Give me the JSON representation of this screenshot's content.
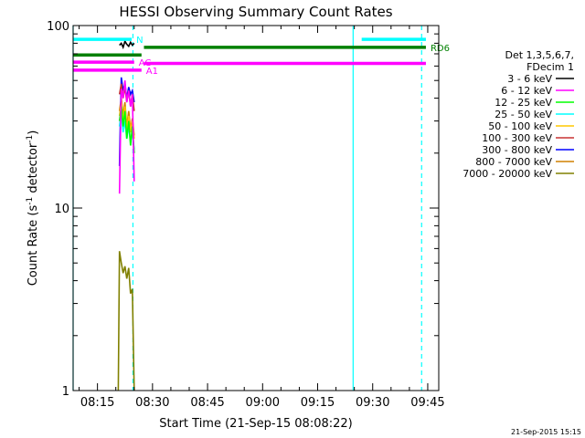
{
  "chart_data": {
    "type": "line",
    "title": "HESSI Observing Summary Count Rates",
    "xlabel": "Start Time (21-Sep-15 08:08:22)",
    "ylabel": "Count Rate (s",
    "ylabel_sup1": "-1",
    "ylabel_mid": " detector",
    "ylabel_sup2": "-1",
    "ylabel_end": ")",
    "y_scale": "log",
    "ylim": [
      1,
      100
    ],
    "xlim": [
      "08:08:22",
      "09:48:00"
    ],
    "x_ticks": [
      "08:15",
      "08:30",
      "08:45",
      "09:00",
      "09:15",
      "09:30",
      "09:45"
    ],
    "y_ticks": [
      "1",
      "10",
      "100"
    ],
    "legend": {
      "placement": "right",
      "header": [
        "Det 1,3,5,6,7,",
        "FDecim 1"
      ],
      "entries": [
        {
          "label": "3 - 6 keV",
          "color": "#000000"
        },
        {
          "label": "6 - 12 keV",
          "color": "#ff00ff"
        },
        {
          "label": "12 - 25 keV",
          "color": "#00ff00"
        },
        {
          "label": "25 - 50 keV",
          "color": "#00ffff"
        },
        {
          "label": "50 - 100 keV",
          "color": "#ffc800"
        },
        {
          "label": "100 - 300 keV",
          "color": "#c83232"
        },
        {
          "label": "300 - 800 keV",
          "color": "#0000ff"
        },
        {
          "label": "800 - 7000 keV",
          "color": "#d08000"
        },
        {
          "label": "7000 - 20000 keV",
          "color": "#808000"
        }
      ]
    },
    "flags": [
      {
        "label": "N",
        "color": "#00ffff",
        "y": 84,
        "segments": [
          [
            "08:08:22",
            "08:24:20"
          ],
          [
            "09:27:00",
            "09:44:30"
          ]
        ]
      },
      {
        "label": "RD6",
        "color": "#008000",
        "y": 76,
        "segments": [
          [
            "08:27:40",
            "09:44:30"
          ]
        ]
      },
      {
        "label": "",
        "color": "#008000",
        "y": 69,
        "segments": [
          [
            "08:08:22",
            "08:27:00"
          ]
        ]
      },
      {
        "label": "AC",
        "color": "#ff00ff",
        "y": 63,
        "segments": [
          [
            "08:08:22",
            "08:25:00"
          ]
        ]
      },
      {
        "label": "A1",
        "color": "#ff00ff",
        "y": 57,
        "segments": [
          [
            "08:08:22",
            "08:27:00"
          ]
        ]
      },
      {
        "label": "",
        "color": "#ff00ff",
        "y": 62,
        "segments": [
          [
            "08:27:40",
            "09:44:30"
          ]
        ]
      }
    ],
    "vlines": [
      {
        "time": "08:08:22",
        "style": "solid",
        "color": "#00ffff"
      },
      {
        "time": "08:24:40",
        "style": "dashed",
        "color": "#00ffff"
      },
      {
        "time": "09:24:40",
        "style": "solid",
        "color": "#00ffff"
      },
      {
        "time": "09:43:20",
        "style": "dashed",
        "color": "#00ffff"
      }
    ],
    "series": [
      {
        "name": "3 - 6 keV",
        "color": "#000000",
        "x": [
          "08:21:00",
          "08:21:30",
          "08:22:00",
          "08:22:30",
          "08:23:00",
          "08:23:30",
          "08:24:00",
          "08:24:30",
          "08:25:00"
        ],
        "y": [
          78,
          80,
          76,
          82,
          79,
          77,
          81,
          78,
          80
        ]
      },
      {
        "name": "6 - 12 keV",
        "color": "#ff00ff",
        "x": [
          "08:21:00",
          "08:21:30",
          "08:22:00",
          "08:22:30",
          "08:23:00",
          "08:23:30",
          "08:24:00",
          "08:24:30",
          "08:25:00"
        ],
        "y": [
          12,
          45,
          40,
          50,
          38,
          44,
          36,
          42,
          14
        ]
      },
      {
        "name": "12 - 25 keV",
        "color": "#00ff00",
        "x": [
          "08:21:00",
          "08:21:30",
          "08:22:00",
          "08:22:30",
          "08:23:00",
          "08:23:30",
          "08:24:00",
          "08:24:30",
          "08:25:00"
        ],
        "y": [
          30,
          36,
          28,
          34,
          24,
          30,
          22,
          28,
          20
        ]
      },
      {
        "name": "25 - 50 keV",
        "color": "#00ffff",
        "x": [
          "08:21:00",
          "08:21:30",
          "08:22:00",
          "08:22:30",
          "08:23:00",
          "08:23:30",
          "08:24:00",
          "08:24:30",
          "08:25:00"
        ],
        "y": [
          28,
          34,
          26,
          30,
          24,
          28,
          23,
          26,
          21
        ]
      },
      {
        "name": "50 - 100 keV",
        "color": "#ffc800",
        "x": [
          "08:21:00",
          "08:21:30",
          "08:22:00",
          "08:22:30",
          "08:23:00",
          "08:23:30",
          "08:24:00",
          "08:24:30",
          "08:25:00"
        ],
        "y": [
          32,
          38,
          30,
          36,
          27,
          32,
          26,
          30,
          24
        ]
      },
      {
        "name": "100 - 300 keV",
        "color": "#c83232",
        "x": [
          "08:21:00",
          "08:21:30",
          "08:22:00",
          "08:22:30",
          "08:23:00",
          "08:23:30",
          "08:24:00",
          "08:24:30",
          "08:25:00"
        ],
        "y": [
          42,
          48,
          40,
          46,
          38,
          44,
          36,
          42,
          34
        ]
      },
      {
        "name": "300 - 800 keV",
        "color": "#0000ff",
        "x": [
          "08:21:00",
          "08:21:30",
          "08:22:00",
          "08:22:30",
          "08:23:00",
          "08:23:30",
          "08:24:00",
          "08:24:30",
          "08:25:00"
        ],
        "y": [
          17,
          52,
          44,
          48,
          40,
          46,
          42,
          44,
          38
        ]
      },
      {
        "name": "800 - 7000 keV",
        "color": "#d08000",
        "x": [
          "08:21:00",
          "08:21:30",
          "08:22:00",
          "08:22:30",
          "08:23:00",
          "08:23:30",
          "08:24:00",
          "08:24:30",
          "08:25:00"
        ],
        "y": [
          34,
          40,
          32,
          38,
          28,
          34,
          27,
          31,
          25
        ]
      },
      {
        "name": "7000 - 20000 keV",
        "color": "#808000",
        "x": [
          "08:20:40",
          "08:21:00",
          "08:21:30",
          "08:22:00",
          "08:22:30",
          "08:23:00",
          "08:23:30",
          "08:24:00",
          "08:24:30",
          "08:25:00"
        ],
        "y": [
          1,
          5.8,
          5.0,
          4.4,
          4.8,
          4.1,
          4.7,
          3.4,
          3.6,
          1
        ]
      }
    ]
  },
  "footer": {
    "timestamp": "21-Sep-2015 15:15"
  }
}
